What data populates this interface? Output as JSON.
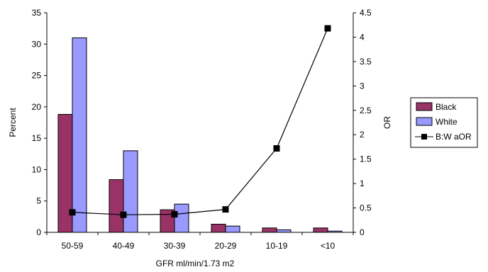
{
  "chart_data": {
    "type": "bar",
    "categories": [
      "50-59",
      "40-49",
      "30-39",
      "20-29",
      "10-19",
      "<10"
    ],
    "series": [
      {
        "name": "Black",
        "values": [
          18.8,
          8.4,
          3.6,
          1.3,
          0.7,
          0.7
        ],
        "color": "#993366",
        "axis": "left"
      },
      {
        "name": "White",
        "values": [
          31.0,
          13.0,
          4.5,
          1.0,
          0.4,
          0.2
        ],
        "color": "#9999ff",
        "axis": "left"
      }
    ],
    "line_series": {
      "name": "B:W aOR",
      "values": [
        0.41,
        0.36,
        0.37,
        0.47,
        1.72,
        4.18
      ],
      "color": "#000000",
      "marker": "square",
      "axis": "right"
    },
    "xlabel": "GFR ml/min/1.73 m2",
    "ylabel": "Percent",
    "ylabel_right": "OR",
    "ylim": [
      0,
      35
    ],
    "ylim_right": [
      0,
      4.5
    ],
    "yticks": [
      "0",
      "5",
      "10",
      "15",
      "20",
      "25",
      "30",
      "35"
    ],
    "yticks_right": [
      "0",
      "0.5",
      "1",
      "1.5",
      "2",
      "2.5",
      "3",
      "3.5",
      "4",
      "4.5"
    ],
    "legend_position": "right",
    "grid": false
  }
}
